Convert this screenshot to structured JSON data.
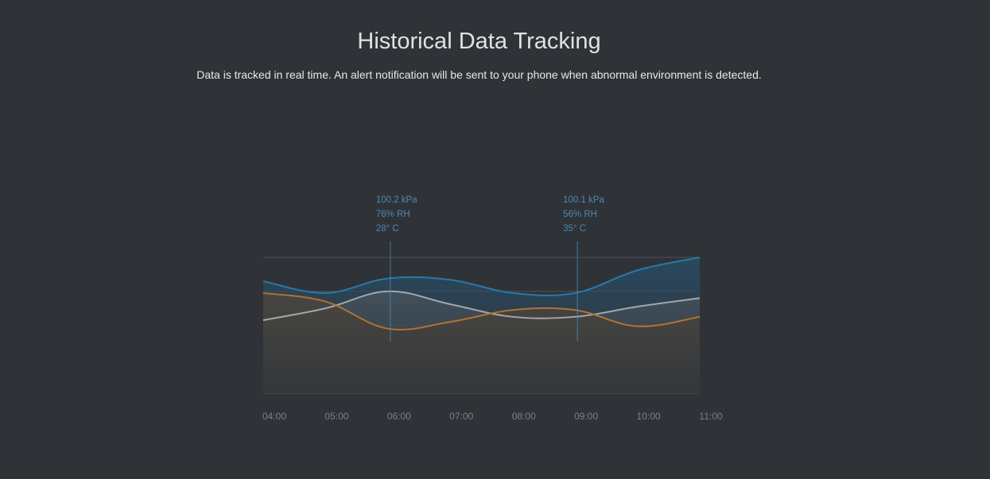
{
  "header": {
    "title": "Historical Data Tracking",
    "subtitle": "Data is tracked in real time. An alert notification will be sent to your phone when abnormal environment is detected."
  },
  "colors": {
    "pressure": "#2a78a8",
    "humidity": "#a3a7aa",
    "temperature": "#b0722e",
    "annotation": "#4f86b4",
    "grid": "#4b5055"
  },
  "chart_data": {
    "type": "line",
    "x": [
      "04:00",
      "05:00",
      "06:00",
      "07:00",
      "08:00",
      "09:00",
      "10:00",
      "11:00"
    ],
    "ylim": [
      0,
      4
    ],
    "grid": true,
    "series": [
      {
        "key": "pressure",
        "values": [
          3.3,
          2.95,
          3.38,
          3.34,
          2.95,
          2.95,
          3.62,
          4.0
        ]
      },
      {
        "key": "humidity",
        "values": [
          2.15,
          2.5,
          3.0,
          2.62,
          2.25,
          2.25,
          2.55,
          2.8
        ]
      },
      {
        "key": "temperature",
        "values": [
          2.95,
          2.7,
          1.9,
          2.1,
          2.45,
          2.45,
          1.97,
          2.25
        ]
      }
    ],
    "annotations": [
      {
        "x": "06:00",
        "lines": [
          "100.2 kPa",
          "76% RH",
          "28° C"
        ]
      },
      {
        "x": "09:00",
        "lines": [
          "100.1 kPa",
          "56% RH",
          "35° C"
        ]
      }
    ]
  }
}
